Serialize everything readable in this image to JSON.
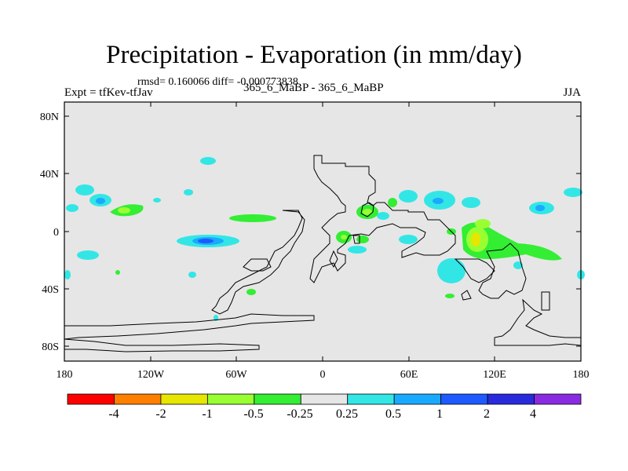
{
  "header": {
    "title": "Precipitation - Evaporation (in mm/day)",
    "stats": "rmsd= 0.160066 diff= -0.000773838",
    "experiment": "Expt = tfKev-tfJav",
    "case": "365_6_MaBP - 365_6_MaBP",
    "season": "JJA"
  },
  "map": {
    "projection": "cylindrical equidistant",
    "background_color": "#e6e6e6",
    "coastline_color": "#000000",
    "x_ticks": [
      "180",
      "120W",
      "60W",
      "0",
      "60E",
      "120E",
      "180"
    ],
    "y_ticks": [
      "80N",
      "40N",
      "0",
      "40S",
      "80S"
    ]
  },
  "colorbar": {
    "colors": [
      "#ff0000",
      "#ff8000",
      "#e6e600",
      "#99ff33",
      "#33ee33",
      "#e6e6e6",
      "#33e6e6",
      "#19aaff",
      "#1e5aff",
      "#2a2add",
      "#8a2be2"
    ],
    "labels": [
      "-4",
      "-2",
      "-1",
      "-0.5",
      "-0.25",
      "0.25",
      "0.5",
      "1",
      "2",
      "4"
    ]
  }
}
